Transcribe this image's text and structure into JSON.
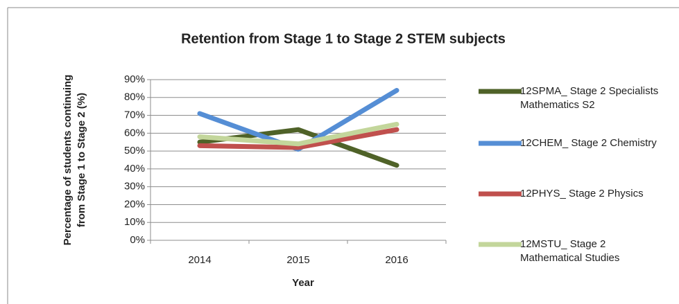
{
  "chart_data": {
    "type": "line",
    "title": "Retention from Stage 1 to Stage 2 STEM subjects",
    "x_label": "Year",
    "y_label": [
      "Percentage of students continuing",
      "from Stage 1 to Stage 2 (%)"
    ],
    "categories": [
      "2014",
      "2015",
      "2016"
    ],
    "series": [
      {
        "name": "12SPMA_ Stage 2 Specialists Mathematics S2",
        "color": "#4f6228",
        "values": [
          55,
          62,
          42
        ]
      },
      {
        "name": "12CHEM_ Stage 2 Chemistry",
        "color": "#558ed5",
        "values": [
          71,
          51,
          84
        ]
      },
      {
        "name": "12PHYS_ Stage 2 Physics",
        "color": "#c0504d",
        "values": [
          53,
          52,
          62
        ]
      },
      {
        "name": "12MSTU_ Stage 2 Mathematical Studies",
        "color": "#c3d69b",
        "values": [
          58,
          54,
          65
        ]
      }
    ],
    "ylim": [
      0,
      90
    ],
    "yticks": [
      {
        "value": 0,
        "label": "0%"
      },
      {
        "value": 10,
        "label": "10%"
      },
      {
        "value": 20,
        "label": "20%"
      },
      {
        "value": 30,
        "label": "30%"
      },
      {
        "value": 40,
        "label": "40%"
      },
      {
        "value": 50,
        "label": "50%"
      },
      {
        "value": 60,
        "label": "60%"
      },
      {
        "value": 70,
        "label": "70%"
      },
      {
        "value": 80,
        "label": "80%"
      },
      {
        "value": 90,
        "label": "90%"
      }
    ],
    "grid": true,
    "legend": "right"
  }
}
